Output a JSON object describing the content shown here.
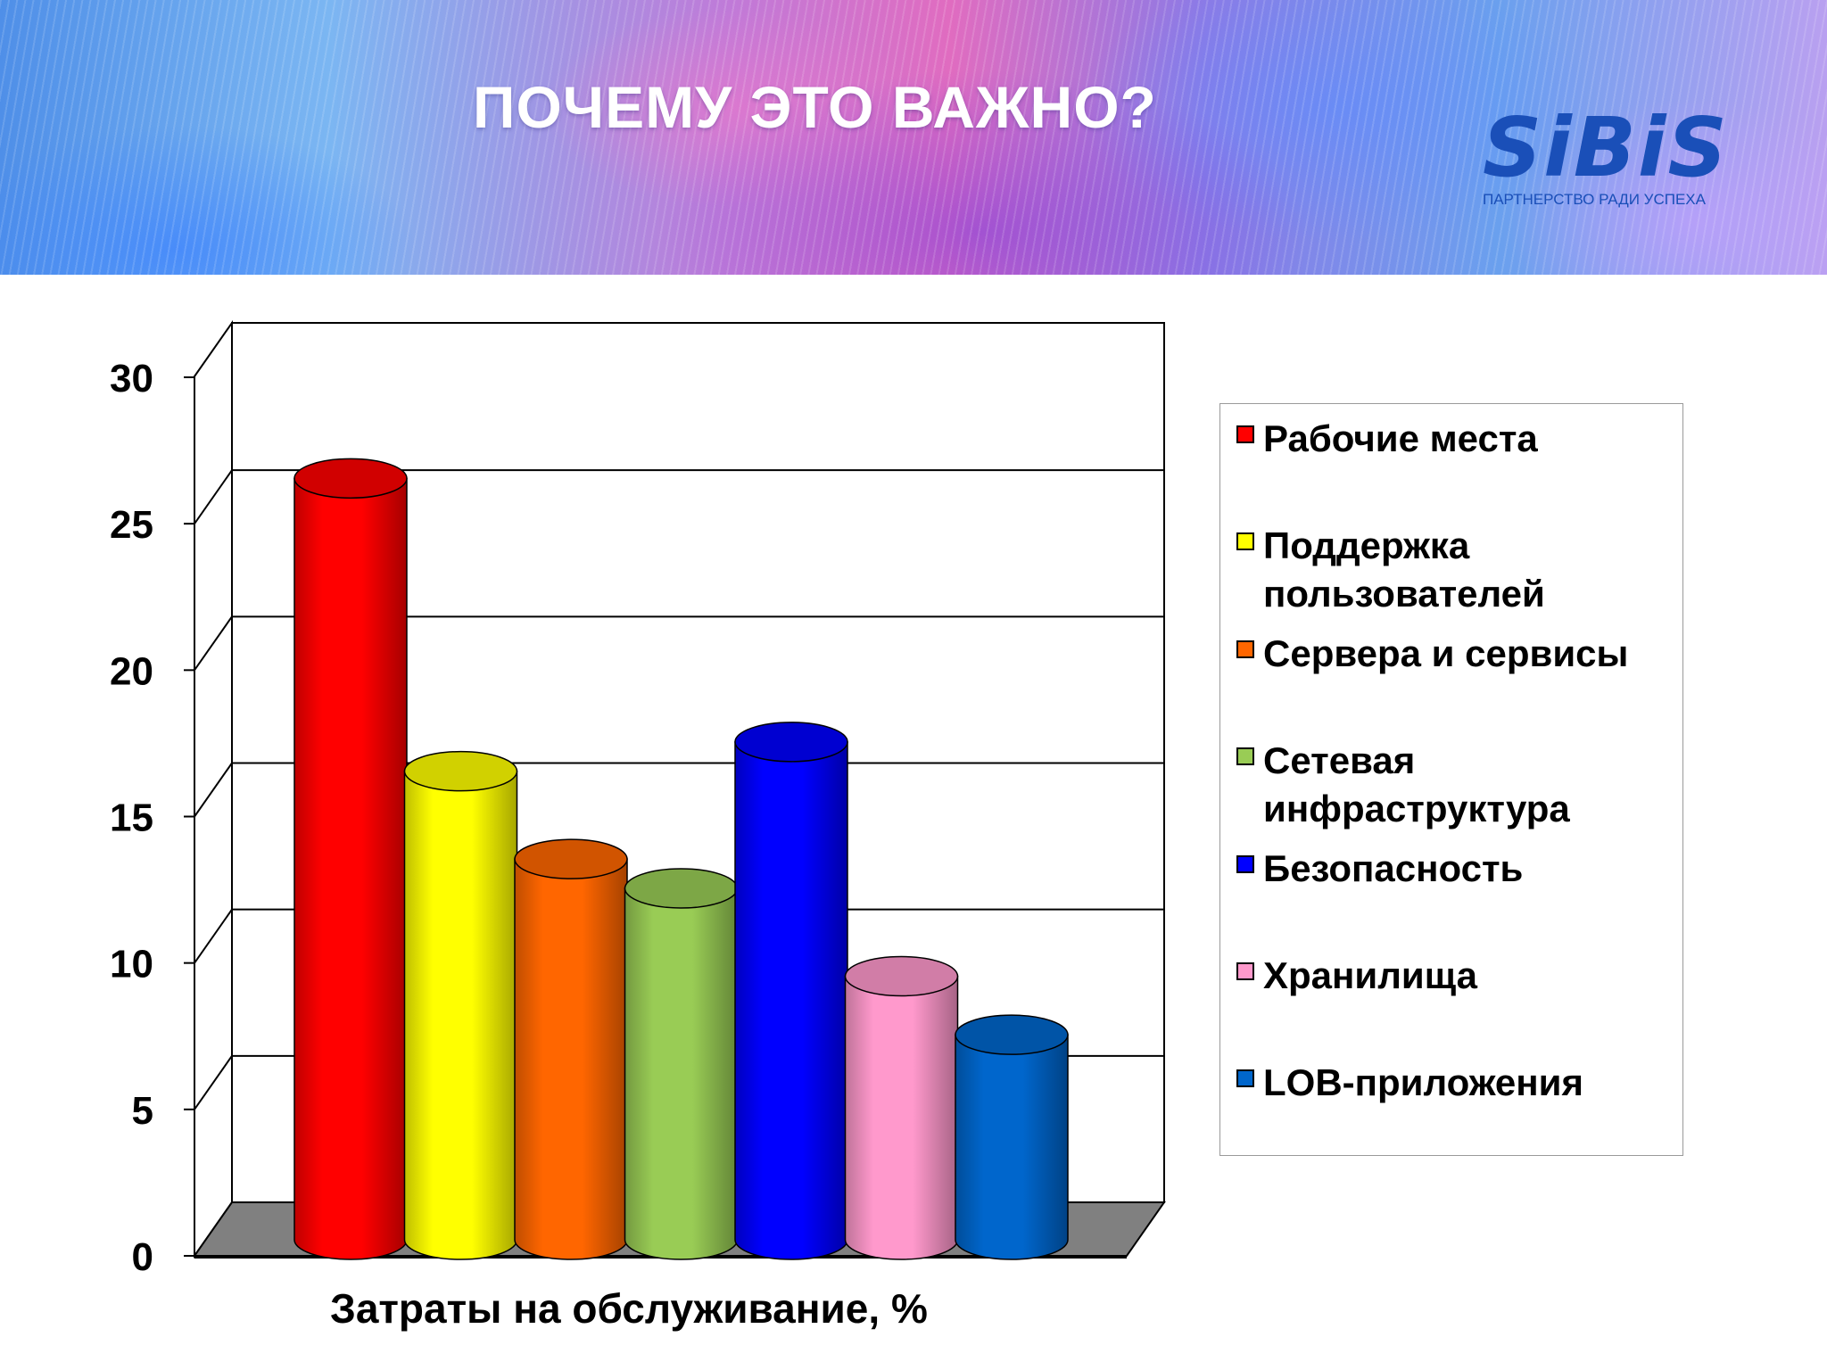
{
  "header": {
    "title": "ПОЧЕМУ ЭТО ВАЖНО?",
    "logo_text": "SiBiS",
    "logo_tagline": "ПАРТНЕРСТВО РАДИ УСПЕХА"
  },
  "chart_data": {
    "type": "bar",
    "style": "3d-cylinder",
    "xlabel": "Затраты на обслуживание, %",
    "ylabel": "",
    "ylim": [
      0,
      30
    ],
    "yticks": [
      0,
      5,
      10,
      15,
      20,
      25,
      30
    ],
    "grid": true,
    "legend_position": "right",
    "series": [
      {
        "name": "Рабочие места",
        "value": 26,
        "color": "#ff0000"
      },
      {
        "name": "Поддержка пользователей",
        "value": 16,
        "color": "#ffff00"
      },
      {
        "name": "Сервера и сервисы",
        "value": 13,
        "color": "#ff6600"
      },
      {
        "name": "Сетевая инфраструктура",
        "value": 12,
        "color": "#99cc55"
      },
      {
        "name": "Безопасность",
        "value": 17,
        "color": "#0000ff"
      },
      {
        "name": "Хранилища",
        "value": 9,
        "color": "#ff99cc"
      },
      {
        "name": "LOB-приложения",
        "value": 7,
        "color": "#0066cc"
      }
    ]
  }
}
